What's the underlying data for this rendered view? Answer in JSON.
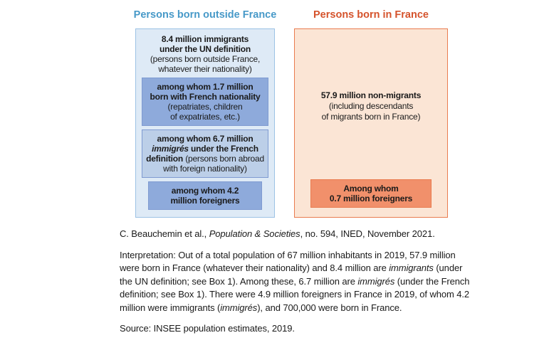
{
  "colors": {
    "left-title": "#4799C8",
    "right-title": "#D5532C",
    "left-outer-fill": "#DEEAF6",
    "left-outer-border": "#9CC2E5",
    "blue-box-fill": "#8EAADB",
    "blue-box-border": "#7F9BD1",
    "light-blue-fill": "#BCCFE8",
    "right-outer-fill": "#FBE5D5",
    "right-outer-border": "#E97C50",
    "orange-box-fill": "#F1906B",
    "orange-box-border": "#E97C50"
  },
  "diagram": {
    "left": {
      "title": "Persons born outside France",
      "outer": {
        "heading_lines": [
          "8.4 million immigrants",
          "under the UN definition"
        ],
        "subtext_lines": [
          "(persons born outside France,",
          "whatever their nationality)"
        ]
      },
      "box_1_7": {
        "heading_lines": [
          "among whom 1.7 million",
          "born with French nationality"
        ],
        "subtext_lines": [
          "(repatriates, children",
          "of expatriates, etc.)"
        ]
      },
      "box_6_7": {
        "bold_pre": "among whom 6.7 million ",
        "bold_italic": "immigrés",
        "bold_post": " under the French definition ",
        "subtext": "(persons born abroad with foreign nationality)"
      },
      "box_4_2": {
        "label_lines": [
          "among whom 4.2",
          "million foreigners"
        ]
      }
    },
    "right": {
      "title": "Persons born in France",
      "outer": {
        "heading": "57.9 million non-migrants",
        "subtext_lines": [
          "(including descendants",
          "of migrants born in France)"
        ]
      },
      "box_0_7": {
        "label_lines": [
          "Among whom",
          "0.7 million foreigners"
        ]
      }
    }
  },
  "caption": {
    "pre": "C. Beauchemin et al., ",
    "italic": "Population & Societies",
    "post": ", no. 594, INED, November 2021."
  },
  "interpretation": {
    "s0": "Interpretation: Out of a total population of 67 million inhabitants in 2019, 57.9 million were born in France (whatever their nationality) and 8.4 million are ",
    "s1": "immigrants",
    "s2": " (under the UN definition; see Box 1). Among these, 6.7 million are ",
    "s3": "immigrés",
    "s4": " (under the French definition; see Box 1). There were 4.9 million foreigners in France in 2019, of whom 4.2 million were immigrants (",
    "s5": "immigrés",
    "s6": "), and 700,000 were born in France."
  },
  "source": "Source: INSEE population estimates, 2019."
}
